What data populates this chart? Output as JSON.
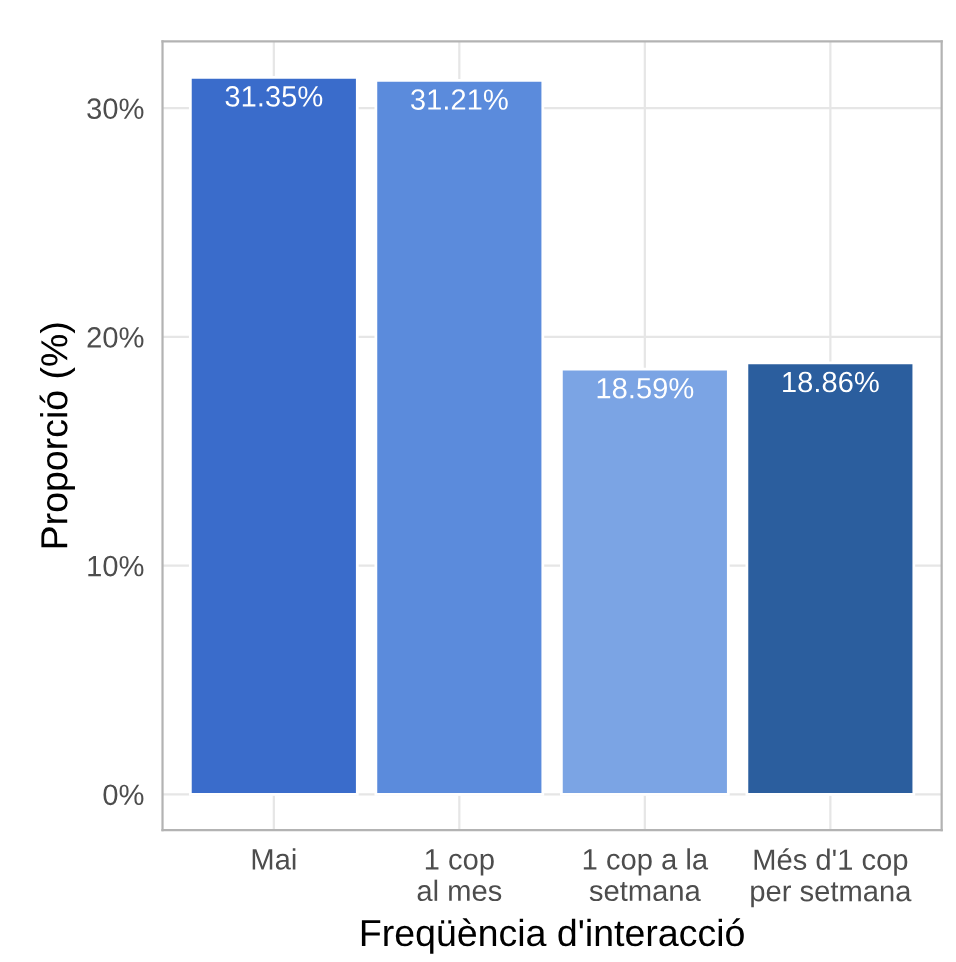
{
  "chart_data": {
    "type": "bar",
    "xlabel": "Freqüència d'interacció",
    "ylabel": "Proporció (%)",
    "categories": [
      "Mai",
      "1 cop\nal mes",
      "1 cop a la\nsetmana",
      "Més d'1 cop\nper setmana"
    ],
    "values": [
      31.35,
      31.21,
      18.59,
      18.86
    ],
    "colors": [
      "#3a6ccb",
      "#5b8bdc",
      "#7ba4e4",
      "#2b5e9e"
    ],
    "value_labels": [
      "31.35%",
      "31.21%",
      "18.59%",
      "18.86%"
    ],
    "ylim": [
      -1.57,
      32.92
    ],
    "yticks": [
      {
        "value": 0,
        "label": "0%"
      },
      {
        "value": 10,
        "label": "10%"
      },
      {
        "value": 20,
        "label": "20%"
      },
      {
        "value": 30,
        "label": "30%"
      }
    ],
    "grid": true,
    "legend": false
  }
}
